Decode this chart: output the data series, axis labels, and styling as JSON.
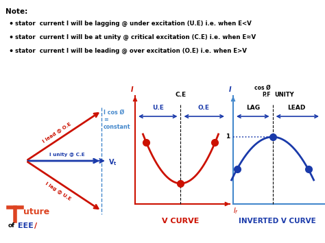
{
  "background_color": "#ffffff",
  "note_text": "Note:",
  "bullets": [
    "stator  current I will be lagging @ under excitation (U.E) i.e. when E<V",
    "stator  current I will be at unity @ critical excitation (C.E) i.e. when E≈V",
    "stator  current I will be leading @ over excitation (O.E) i.e. when E>V"
  ],
  "red_color": "#cc1100",
  "blue_color": "#1a3aaa",
  "dark_blue": "#1a3aaa",
  "light_blue": "#4488cc",
  "logo_red": "#dd4422"
}
